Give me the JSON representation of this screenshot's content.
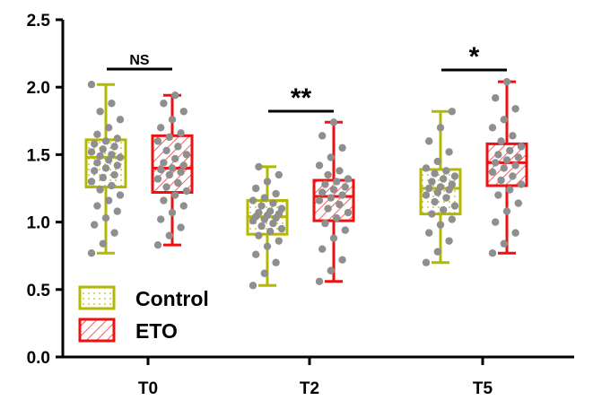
{
  "chart_data": {
    "type": "box",
    "ylim": [
      0,
      2.5
    ],
    "yticks": [
      "0.0",
      "0.5",
      "1.0",
      "1.5",
      "2.0",
      "2.5"
    ],
    "categories": [
      "T0",
      "T2",
      "T5"
    ],
    "series": [
      {
        "name": "Control",
        "color": "#b5b800",
        "fill_pattern": "dots",
        "boxes": [
          {
            "min": 0.77,
            "q1": 1.26,
            "median": 1.48,
            "q3": 1.61,
            "max": 2.02
          },
          {
            "min": 0.53,
            "q1": 0.91,
            "median": 1.04,
            "q3": 1.16,
            "max": 1.41
          },
          {
            "min": 0.7,
            "q1": 1.06,
            "median": 1.25,
            "q3": 1.39,
            "max": 1.82
          }
        ],
        "points": [
          [
            0.77,
            0.84,
            0.92,
            0.98,
            1.03,
            1.08,
            1.12,
            1.16,
            1.2,
            1.24,
            1.27,
            1.3,
            1.33,
            1.35,
            1.38,
            1.4,
            1.42,
            1.44,
            1.46,
            1.48,
            1.49,
            1.5,
            1.52,
            1.54,
            1.56,
            1.58,
            1.6,
            1.62,
            1.65,
            1.7,
            1.76,
            1.82,
            1.88,
            2.02
          ],
          [
            0.53,
            0.62,
            0.7,
            0.76,
            0.82,
            0.86,
            0.9,
            0.93,
            0.95,
            0.97,
            0.99,
            1.01,
            1.02,
            1.03,
            1.04,
            1.05,
            1.06,
            1.07,
            1.08,
            1.1,
            1.12,
            1.14,
            1.16,
            1.18,
            1.21,
            1.25,
            1.3,
            1.35,
            1.41
          ],
          [
            0.7,
            0.78,
            0.86,
            0.92,
            0.98,
            1.02,
            1.06,
            1.09,
            1.12,
            1.15,
            1.18,
            1.2,
            1.22,
            1.24,
            1.25,
            1.26,
            1.28,
            1.3,
            1.32,
            1.34,
            1.36,
            1.38,
            1.4,
            1.45,
            1.52,
            1.6,
            1.7,
            1.82
          ]
        ]
      },
      {
        "name": "ETO",
        "color": "#ee1111",
        "fill_pattern": "hatch",
        "boxes": [
          {
            "min": 0.83,
            "q1": 1.22,
            "median": 1.4,
            "q3": 1.64,
            "max": 1.94
          },
          {
            "min": 0.56,
            "q1": 1.01,
            "median": 1.19,
            "q3": 1.31,
            "max": 1.74
          },
          {
            "min": 0.77,
            "q1": 1.27,
            "median": 1.44,
            "q3": 1.58,
            "max": 2.04
          }
        ],
        "points": [
          [
            0.83,
            0.9,
            0.96,
            1.02,
            1.07,
            1.12,
            1.16,
            1.2,
            1.23,
            1.26,
            1.29,
            1.32,
            1.35,
            1.37,
            1.39,
            1.4,
            1.42,
            1.44,
            1.47,
            1.5,
            1.53,
            1.56,
            1.6,
            1.63,
            1.66,
            1.7,
            1.76,
            1.82,
            1.88,
            1.94
          ],
          [
            0.56,
            0.64,
            0.72,
            0.8,
            0.88,
            0.94,
            0.99,
            1.03,
            1.07,
            1.1,
            1.13,
            1.16,
            1.18,
            1.2,
            1.22,
            1.24,
            1.26,
            1.28,
            1.3,
            1.32,
            1.35,
            1.38,
            1.42,
            1.48,
            1.55,
            1.64,
            1.74
          ],
          [
            0.77,
            0.84,
            0.92,
            1.0,
            1.08,
            1.14,
            1.2,
            1.24,
            1.28,
            1.31,
            1.34,
            1.37,
            1.4,
            1.42,
            1.44,
            1.46,
            1.48,
            1.5,
            1.53,
            1.56,
            1.6,
            1.64,
            1.7,
            1.76,
            1.84,
            1.92,
            2.04
          ]
        ]
      }
    ],
    "significance": [
      "NS",
      "**",
      "*"
    ],
    "legend_placement": "bottom-left",
    "grid": false
  }
}
